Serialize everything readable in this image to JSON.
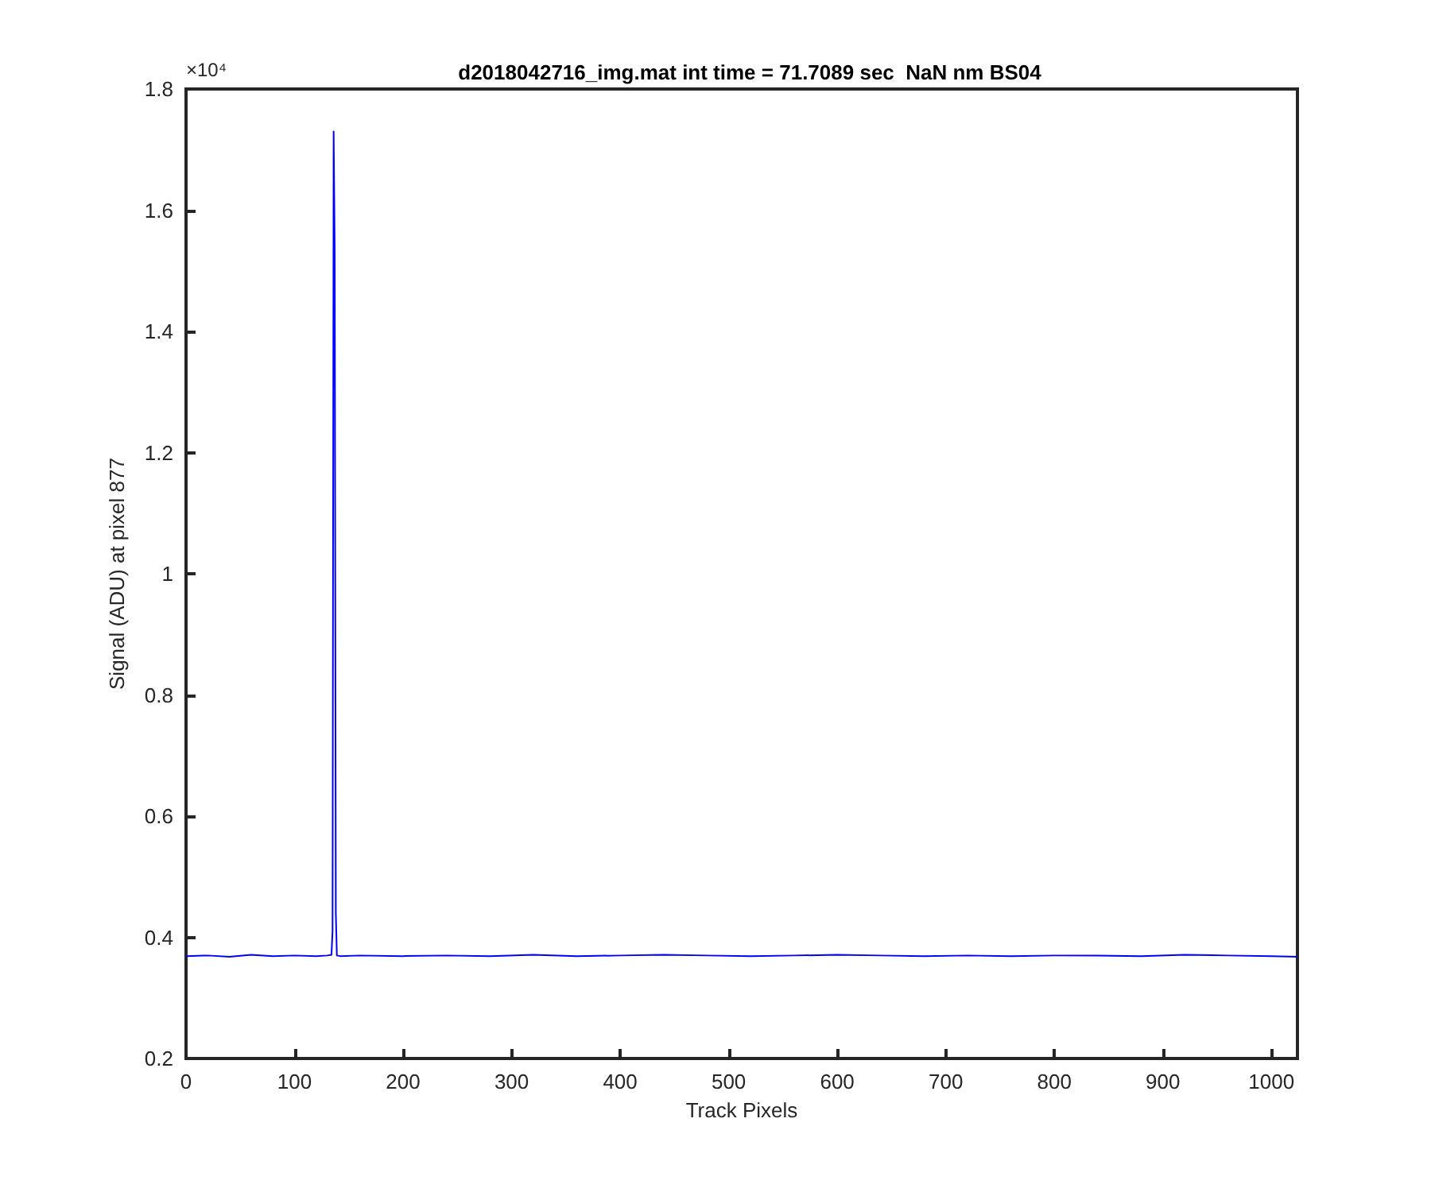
{
  "chart_data": {
    "type": "line",
    "title": "d2018042716_img.mat int time = 71.7089 sec  NaN nm BS04",
    "xlabel": "Track Pixels",
    "ylabel": "Signal (ADU) at pixel 877",
    "annotations": [
      "×10⁴"
    ],
    "series": [
      {
        "color": "#0000ff",
        "x": [
          0,
          20,
          40,
          60,
          80,
          100,
          120,
          130,
          134,
          135,
          136,
          137,
          138,
          139,
          142,
          160,
          200,
          240,
          280,
          320,
          360,
          400,
          440,
          480,
          520,
          560,
          600,
          640,
          680,
          720,
          760,
          800,
          840,
          880,
          920,
          960,
          1000,
          1024
        ],
        "values": [
          0.369,
          0.37,
          0.368,
          0.371,
          0.369,
          0.37,
          0.369,
          0.37,
          0.371,
          0.41,
          1.73,
          1.53,
          0.44,
          0.37,
          0.369,
          0.37,
          0.369,
          0.37,
          0.369,
          0.371,
          0.369,
          0.37,
          0.371,
          0.37,
          0.369,
          0.37,
          0.371,
          0.37,
          0.369,
          0.37,
          0.369,
          0.37,
          0.37,
          0.369,
          0.371,
          0.37,
          0.369,
          0.368
        ]
      }
    ],
    "xlim": [
      0,
      1024
    ],
    "xticks": [
      0,
      100,
      200,
      300,
      400,
      500,
      600,
      700,
      800,
      900,
      1000
    ],
    "ylim": [
      0.2,
      1.8
    ],
    "yticks": [
      0.2,
      0.4,
      0.6,
      0.8,
      1,
      1.2,
      1.4,
      1.6,
      1.8
    ]
  }
}
